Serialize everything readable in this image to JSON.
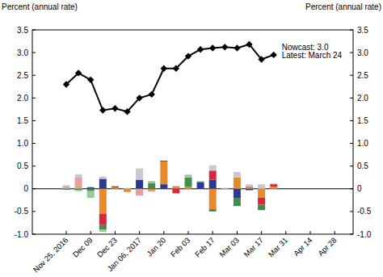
{
  "chart_data": {
    "type": "bar",
    "stacked": true,
    "ylabel": "Percent (annual rate)",
    "y2label": "Percent (annual rate)",
    "annotations": [
      "Nowcast: 3.0",
      "Latest: March 24"
    ],
    "categories": [
      "Nov 25, 2016",
      null,
      "Dec 09",
      null,
      "Dec 23",
      null,
      "Jan 06, 2017",
      null,
      "Jan 20",
      null,
      "Feb 03",
      null,
      "Feb 17",
      null,
      "Mar 03",
      null,
      "Mar 17",
      null,
      "Mar 31",
      null,
      "Apr 14",
      null,
      "Apr 28"
    ],
    "ylim": [
      -1.0,
      3.5
    ],
    "yticks": [
      {
        "value": -1.0,
        "label": "-1.0"
      },
      -0.5,
      0,
      0.5,
      {
        "value": 1.0,
        "label": "1.0"
      },
      1.5,
      {
        "value": 2.0,
        "label": "2.0"
      },
      2.5,
      {
        "value": 3.0,
        "label": "3.0"
      },
      3.5
    ],
    "y2lim": [
      -1.0,
      3.5
    ],
    "y2ticks": [
      {
        "value": -1.0,
        "label": "-1.0"
      },
      -0.5,
      0,
      0.5,
      {
        "value": 1.0,
        "label": "1.0"
      },
      1.5,
      {
        "value": 2.0,
        "label": "2.0"
      },
      2.5,
      {
        "value": 3.0,
        "label": "3.0"
      },
      3.5
    ],
    "series": [
      {
        "type": "bar",
        "color": "#2b3990",
        "values": [
          0,
          0,
          0.03,
          0.22,
          0,
          0,
          0.2,
          0,
          0.1,
          0,
          0,
          0.15,
          0.2,
          0,
          -0.2,
          -0.03,
          0,
          0,
          null,
          null,
          null,
          null,
          null
        ]
      },
      {
        "type": "bar",
        "color": "#e8892b",
        "values": [
          0,
          0,
          0,
          -0.55,
          0.03,
          -0.07,
          0,
          -0.05,
          0.5,
          0.05,
          0.05,
          0,
          -0.45,
          0,
          0.25,
          0.05,
          -0.2,
          0.05,
          null,
          null,
          null,
          null,
          null
        ]
      },
      {
        "type": "bar",
        "color": "#d7263d",
        "values": [
          0,
          0,
          0,
          -0.25,
          0.02,
          0,
          0,
          0,
          0.02,
          -0.1,
          0,
          0,
          0.2,
          0,
          0,
          0,
          -0.15,
          0.05,
          null,
          null,
          null,
          null,
          null
        ]
      },
      {
        "type": "bar",
        "color": "#3f8f4a",
        "values": [
          -0.02,
          -0.03,
          -0.05,
          -0.1,
          0,
          0,
          0,
          0.12,
          0,
          0,
          0.2,
          0,
          -0.05,
          0,
          -0.18,
          0,
          -0.12,
          0,
          null,
          null,
          null,
          null,
          null
        ]
      },
      {
        "type": "bar",
        "color": "#9cc79a",
        "values": [
          0,
          -0.02,
          -0.15,
          -0.05,
          0,
          0,
          0,
          0.05,
          0,
          0,
          0.05,
          0.02,
          0,
          0.02,
          0,
          0,
          0,
          0,
          null,
          null,
          null,
          null,
          null
        ]
      },
      {
        "type": "bar",
        "color": "#e3a19a",
        "values": [
          0.05,
          0.25,
          0,
          0,
          0,
          0,
          -0.15,
          0,
          0,
          0,
          0,
          0,
          0,
          0,
          0,
          0,
          0,
          0,
          null,
          null,
          null,
          null,
          null
        ]
      },
      {
        "type": "bar",
        "color": "#c9c9d6",
        "values": [
          0.03,
          0.07,
          0.02,
          0.05,
          0.02,
          0.02,
          0.25,
          -0.02,
          0,
          0.02,
          0.02,
          0,
          0.12,
          0,
          0.12,
          0.05,
          0.1,
          0.02,
          null,
          null,
          null,
          null,
          null
        ]
      },
      {
        "type": "line",
        "color": "#000000",
        "marker": "diamond",
        "values": [
          2.3,
          2.55,
          2.4,
          1.73,
          1.77,
          1.7,
          2.0,
          2.08,
          2.65,
          2.65,
          2.92,
          3.07,
          3.1,
          3.12,
          3.1,
          3.18,
          2.85,
          2.95,
          null,
          null,
          null,
          null,
          null
        ]
      }
    ]
  }
}
